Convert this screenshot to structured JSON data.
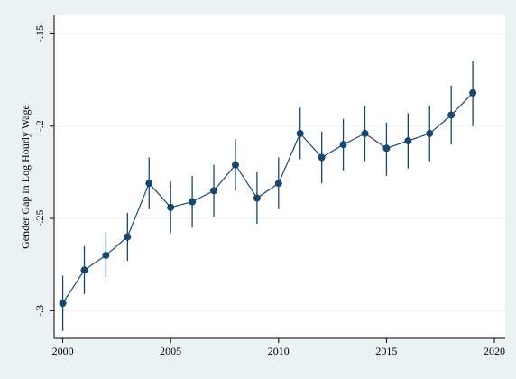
{
  "chart_data": {
    "type": "line",
    "title": "",
    "xlabel": "",
    "ylabel": "Gender Gap in Log Hourly Wage",
    "xlim": [
      1999.6,
      2020.5
    ],
    "ylim": [
      -0.315,
      -0.14
    ],
    "xticks": [
      2000,
      2005,
      2010,
      2015,
      2020
    ],
    "xtick_labels": [
      "2000",
      "2005",
      "2010",
      "2015",
      "2020"
    ],
    "yticks": [
      -0.3,
      -0.25,
      -0.2,
      -0.15
    ],
    "ytick_labels": [
      "-.3",
      "-.25",
      "-.2",
      "-.15"
    ],
    "grid": true,
    "legend": "none",
    "series": [
      {
        "x": [
          2000,
          2001,
          2002,
          2003,
          2004,
          2005,
          2006,
          2007,
          2008,
          2009,
          2010,
          2011,
          2012,
          2013,
          2014,
          2015,
          2016,
          2017,
          2018,
          2019
        ],
        "values": [
          -0.296,
          -0.278,
          -0.27,
          -0.26,
          -0.231,
          -0.244,
          -0.241,
          -0.235,
          -0.221,
          -0.239,
          -0.231,
          -0.204,
          -0.217,
          -0.21,
          -0.204,
          -0.212,
          -0.208,
          -0.204,
          -0.194,
          -0.182
        ],
        "ci_low": [
          -0.311,
          -0.291,
          -0.282,
          -0.273,
          -0.245,
          -0.258,
          -0.255,
          -0.249,
          -0.235,
          -0.253,
          -0.245,
          -0.218,
          -0.231,
          -0.224,
          -0.219,
          -0.227,
          -0.223,
          -0.219,
          -0.21,
          -0.2
        ],
        "ci_high": [
          -0.281,
          -0.265,
          -0.257,
          -0.247,
          -0.217,
          -0.23,
          -0.227,
          -0.221,
          -0.207,
          -0.225,
          -0.217,
          -0.19,
          -0.203,
          -0.196,
          -0.189,
          -0.198,
          -0.193,
          -0.189,
          -0.178,
          -0.165
        ]
      }
    ]
  },
  "colors": {
    "background": "#eaf2f3",
    "plot_area": "#ffffff",
    "series": "#1a476f",
    "grid": "#eaf2f3",
    "axis": "#000000"
  }
}
